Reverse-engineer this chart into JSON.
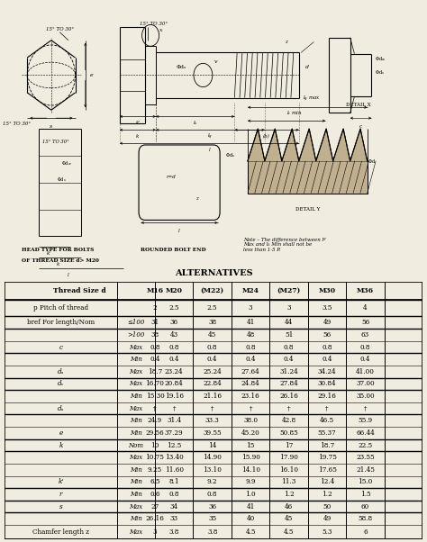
{
  "bg_color": "#f0ece0",
  "white": "#ffffff",
  "table_title": "ALTERNATIVES",
  "col_headers": [
    "Thread Size d",
    "M16",
    "M20",
    "(M22)",
    "M24",
    "(M27)",
    "M30",
    "M36"
  ],
  "table_rows": [
    [
      "p Pitch of thread",
      "",
      "2",
      "2.5",
      "2.5",
      "3",
      "3",
      "3.5",
      "4"
    ],
    [
      "bref For length/Nom",
      "≤100",
      "31",
      "36",
      "38",
      "41",
      "44",
      "49",
      "56"
    ],
    [
      "",
      ">100",
      "38",
      "43",
      "45",
      "48",
      "51",
      "56",
      "63"
    ],
    [
      "c",
      "Max",
      "0.8",
      "0.8",
      "0.8",
      "0.8",
      "0.8",
      "0.8",
      "0.8"
    ],
    [
      "",
      "Min",
      "0.4",
      "0.4",
      "0.4",
      "0.4",
      "0.4",
      "0.4",
      "0.4"
    ],
    [
      "d_a",
      "Max",
      "18.7",
      "23.24",
      "25.24",
      "27.64",
      "31.24",
      "34.24",
      "41.00"
    ],
    [
      "d_s",
      "Max",
      "16.70",
      "20.84",
      "22.84",
      "24.84",
      "27.84",
      "30.84",
      "37.00"
    ],
    [
      "",
      "Min",
      "15.30",
      "19.16",
      "21.16",
      "23.16",
      "26.16",
      "29.16",
      "35.00"
    ],
    [
      "d_w",
      "Max",
      "†",
      "†",
      "†",
      "†",
      "†",
      "†",
      "†"
    ],
    [
      "",
      "Min",
      "24.9",
      "31.4",
      "33.3",
      "38.0",
      "42.8",
      "46.5",
      "55.9"
    ],
    [
      "e",
      "Min",
      "29.56",
      "37.29",
      "39.55",
      "45.20",
      "50.85",
      "55.37",
      "66.44"
    ],
    [
      "k",
      "Nom",
      "10",
      "12.5",
      "14",
      "15",
      "17",
      "18.7",
      "22.5"
    ],
    [
      "",
      "Max",
      "10.75",
      "13.40",
      "14.90",
      "15.90",
      "17.90",
      "19.75",
      "23.55"
    ],
    [
      "",
      "Min",
      "9.25",
      "11.60",
      "13.10",
      "14.10",
      "16.10",
      "17.65",
      "21.45"
    ],
    [
      "k'",
      "Min",
      "6.5",
      "8.1",
      "9.2",
      "9.9",
      "11.3",
      "12.4",
      "15.0"
    ],
    [
      "r",
      "Min",
      "0.6",
      "0.8",
      "0.8",
      "1.0",
      "1.2",
      "1.2",
      "1.5"
    ],
    [
      "s",
      "Max",
      "27",
      "34",
      "36",
      "41",
      "46",
      "50",
      "60"
    ],
    [
      "",
      "Min",
      "26.16",
      "33",
      "35",
      "40",
      "45",
      "49",
      "58.8"
    ],
    [
      "Chamfer length z",
      "Max",
      "3",
      "3.8",
      "3.8",
      "4.5",
      "4.5",
      "5.3",
      "6"
    ]
  ],
  "group_starts": [
    0,
    1,
    2,
    4,
    6,
    7,
    9,
    11,
    12,
    15,
    16,
    17,
    19
  ],
  "note_text": "Note – The difference between lᵍ\nMax and lₖ Min shall not be\nless than 1·5 P."
}
